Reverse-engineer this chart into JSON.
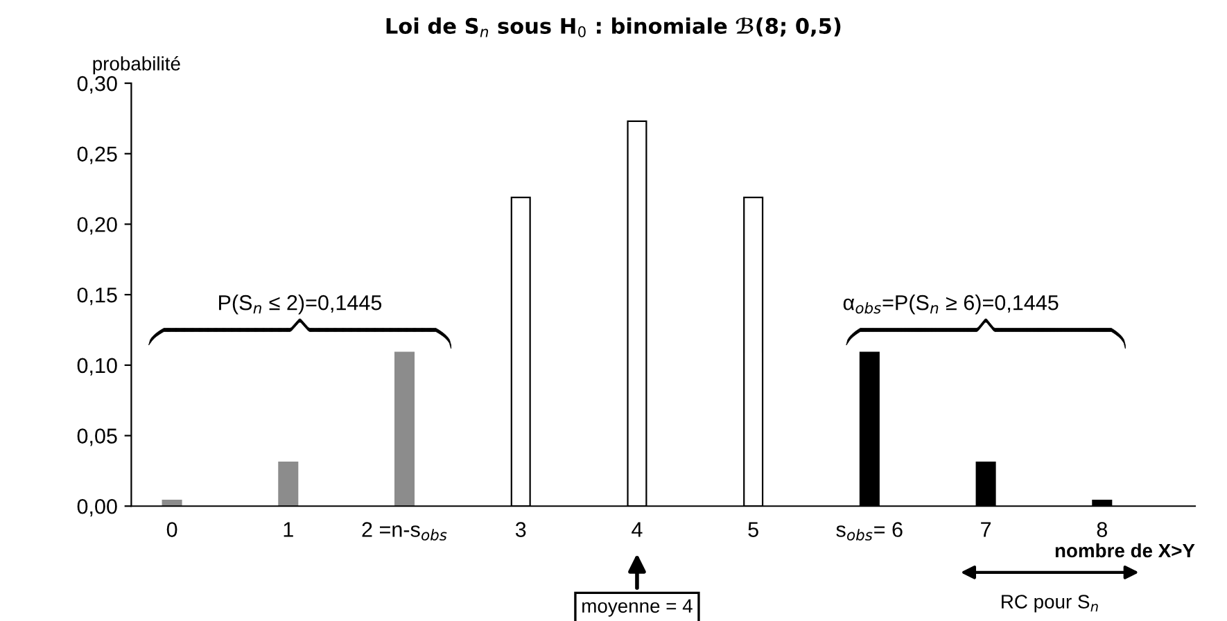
{
  "chart_data": {
    "type": "bar",
    "title": "Loi de S$_{n}$ sous H$_{0}$ : binomiale ℬ(8; 0,5)",
    "ylabel": "probabilité",
    "xlabel": "nombre de X>Y",
    "categories": [
      "0",
      "1",
      "2 =n-s$_{obs}$",
      "3",
      "4",
      "5",
      "s$_{obs}$= 6",
      "7",
      "8"
    ],
    "values": [
      0.004,
      0.031,
      0.109,
      0.219,
      0.273,
      0.219,
      0.109,
      0.031,
      0.004
    ],
    "colors": [
      "#8c8c8c",
      "#8c8c8c",
      "#8c8c8c",
      "#ffffff",
      "#ffffff",
      "#ffffff",
      "#000000",
      "#000000",
      "#000000"
    ],
    "ylim": [
      0,
      0.3
    ],
    "yticks": [
      {
        "value": 0,
        "label": "0,00"
      },
      {
        "value": 0.05,
        "label": "0,05"
      },
      {
        "value": 0.1,
        "label": "0,10"
      },
      {
        "value": 0.15,
        "label": "0,15"
      },
      {
        "value": 0.2,
        "label": "0,20"
      },
      {
        "value": 0.25,
        "label": "0,25"
      },
      {
        "value": 0.3,
        "label": "0,30"
      }
    ],
    "annotations": [
      "P(S$_{n}$ ≤ 2)=0,1445",
      "α$_{obs}$=P(S$_{n}$ ≥ 6)=0,1445",
      "moyenne = 4",
      "RC pour S$_{n}$"
    ],
    "grid": false,
    "legend": false
  }
}
